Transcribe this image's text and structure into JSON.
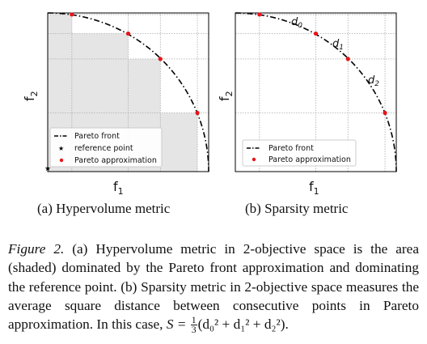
{
  "panel_a": {
    "xlabel": "f",
    "xlabel_sub": "1",
    "ylabel": "f",
    "ylabel_sub": "2",
    "legend": [
      "Pareto front",
      "reference point",
      "Pareto approximation"
    ],
    "caption": "(a) Hypervolume metric"
  },
  "panel_b": {
    "xlabel": "f",
    "xlabel_sub": "1",
    "ylabel": "f",
    "ylabel_sub": "2",
    "legend": [
      "Pareto front",
      "Pareto approximation"
    ],
    "distance_labels": [
      "d",
      "d",
      "d"
    ],
    "distance_subs": [
      "0",
      "1",
      "2"
    ],
    "caption": "(b) Sparsity metric"
  },
  "figure_caption": {
    "label": "Figure 2.",
    "text": " (a) Hypervolume metric in 2-objective space is the area (shaded) dominated by the Pareto front approximation and dominating the reference point. (b) Sparsity metric in 2-objective space measures the average square distance between consecutive points in Pareto approximation. In this case, ",
    "formula_lhs": "S = ",
    "frac_num": "1",
    "frac_den": "3",
    "formula_rhs": "(d₀² + d₁² + d₂²)."
  },
  "colors": {
    "shade": "#e5e5e5",
    "point": "#e8151b",
    "front": "#000000",
    "grid": "#aaaaaa"
  },
  "chart_data": [
    {
      "type": "scatter",
      "title": "",
      "xlabel": "f1",
      "ylabel": "f2",
      "xlim": [
        0,
        1
      ],
      "ylim": [
        0,
        1
      ],
      "grid": true,
      "legend_position": "bottom-left",
      "front_curve": "quarter circle of radius 1 centered at (0,0)",
      "pareto_approximation": {
        "x": [
          0.15,
          0.5,
          0.7,
          0.93
        ],
        "y": [
          0.99,
          0.87,
          0.71,
          0.37
        ]
      },
      "reference_point": {
        "x": 0,
        "y": 0
      },
      "shaded_region": "union of rectangles dominated by approximation points"
    },
    {
      "type": "scatter",
      "title": "",
      "xlabel": "f1",
      "ylabel": "f2",
      "xlim": [
        0,
        1
      ],
      "ylim": [
        0,
        1
      ],
      "grid": true,
      "legend_position": "bottom-left",
      "front_curve": "quarter circle of radius 1 centered at (0,0)",
      "pareto_approximation": {
        "x": [
          0.15,
          0.5,
          0.7,
          0.93
        ],
        "y": [
          0.99,
          0.87,
          0.71,
          0.37
        ]
      }
    }
  ]
}
